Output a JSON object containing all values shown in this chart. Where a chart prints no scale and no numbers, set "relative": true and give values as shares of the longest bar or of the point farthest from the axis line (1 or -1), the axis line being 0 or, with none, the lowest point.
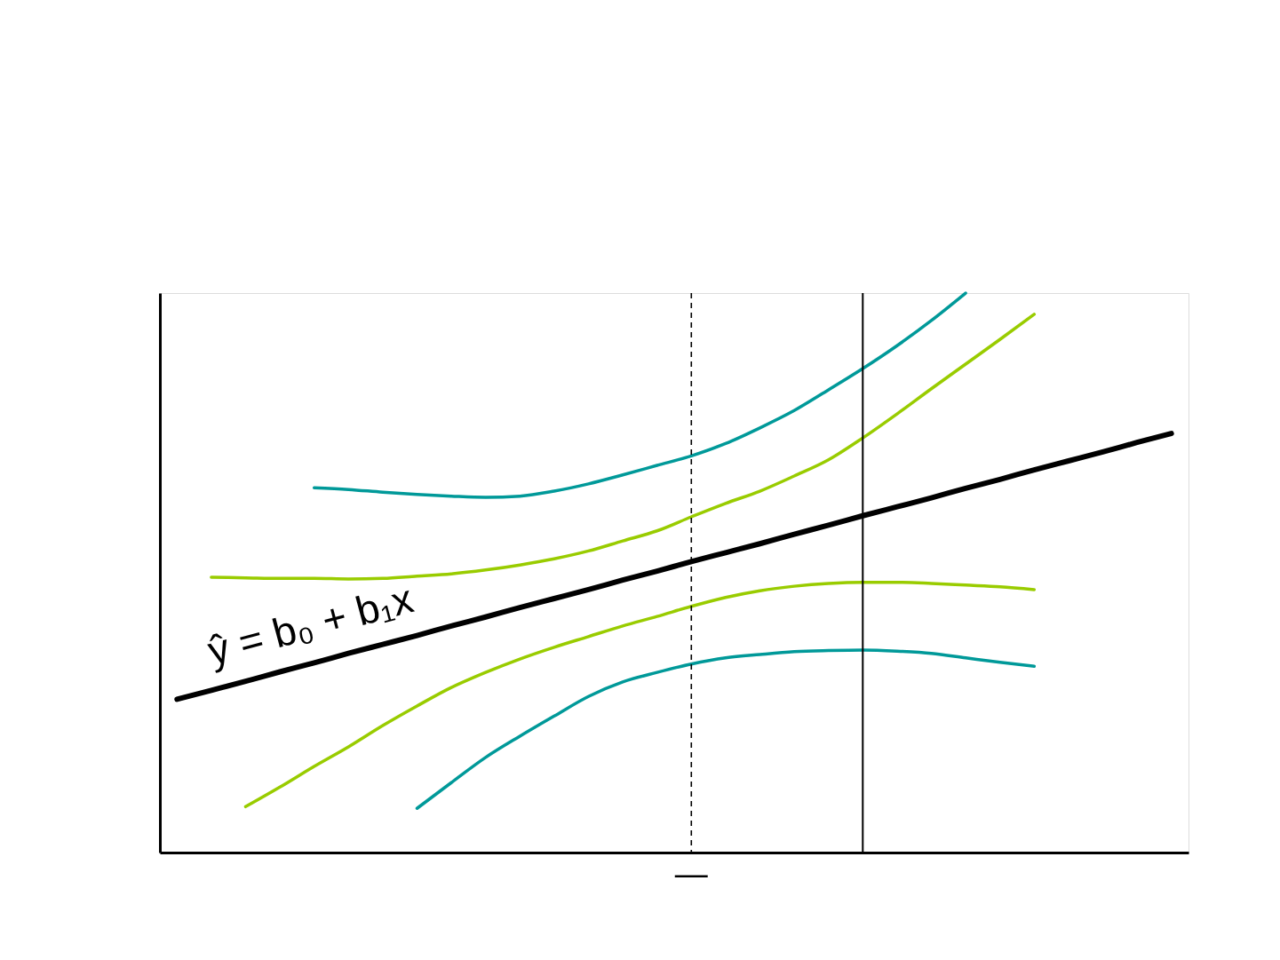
{
  "chart_data": {
    "type": "line",
    "relative": true,
    "categories": [
      null,
      null,
      null,
      null,
      null,
      null,
      null,
      null,
      null,
      null,
      null,
      null,
      null,
      null,
      null,
      null,
      null,
      null,
      null,
      null,
      null,
      null,
      null,
      null,
      null,
      null,
      null,
      null,
      null,
      null
    ],
    "series": [
      {
        "color": "#000000",
        "values": [
          0.274,
          0.29,
          0.306,
          0.323,
          0.339,
          0.356,
          0.372,
          0.388,
          0.405,
          0.421,
          0.438,
          0.454,
          0.47,
          0.487,
          0.503,
          0.52,
          0.536,
          0.552,
          0.569,
          0.585,
          0.602,
          0.618,
          0.634,
          0.651,
          0.667,
          0.684,
          0.7,
          0.716,
          0.733,
          0.749
        ]
      },
      {
        "color": "#99cc00",
        "values": [
          null,
          0.492,
          0.491,
          0.49,
          0.49,
          0.489,
          0.49,
          0.494,
          0.498,
          0.505,
          0.514,
          0.525,
          0.539,
          0.557,
          0.575,
          0.6,
          0.624,
          0.646,
          0.673,
          0.702,
          0.741,
          0.784,
          0.829,
          0.873,
          0.917,
          0.962,
          null,
          null,
          null,
          null
        ]
      },
      {
        "color": "#99cc00",
        "values": [
          null,
          null,
          0.082,
          0.117,
          0.154,
          0.189,
          0.227,
          0.262,
          0.295,
          0.322,
          0.346,
          0.367,
          0.386,
          0.405,
          0.422,
          0.44,
          0.456,
          0.468,
          0.476,
          0.481,
          0.483,
          0.483,
          0.481,
          0.478,
          0.475,
          0.47,
          null,
          null,
          null,
          null
        ]
      },
      {
        "color": "#009999",
        "values": [
          null,
          null,
          null,
          null,
          0.652,
          0.649,
          0.644,
          0.64,
          0.637,
          0.635,
          0.637,
          0.646,
          0.659,
          0.675,
          0.692,
          0.709,
          0.731,
          0.759,
          0.79,
          0.827,
          0.865,
          0.906,
          0.951,
          1.0,
          null,
          null,
          null,
          null,
          null,
          null
        ]
      },
      {
        "color": "#009999",
        "values": [
          null,
          null,
          null,
          null,
          null,
          null,
          null,
          0.079,
          0.125,
          0.17,
          0.208,
          0.244,
          0.279,
          0.305,
          0.322,
          0.337,
          0.348,
          0.354,
          0.359,
          0.361,
          0.362,
          0.36,
          0.356,
          0.348,
          0.34,
          0.333,
          null,
          null,
          null,
          null
        ]
      }
    ],
    "annotations": [
      "ŷ = b₀ + b₁x",
      "—"
    ]
  }
}
